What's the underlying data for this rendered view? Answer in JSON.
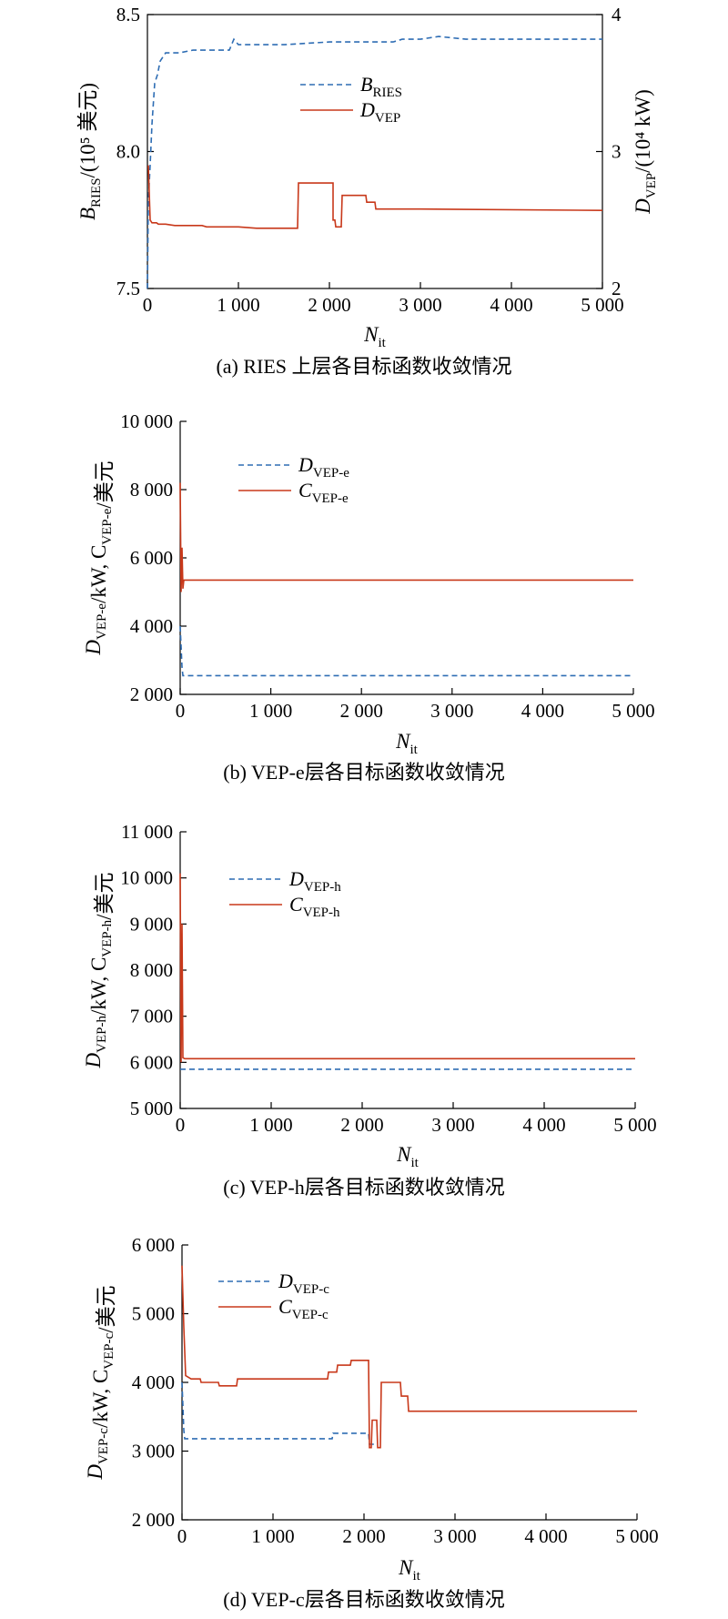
{
  "chart_data": [
    {
      "type": "line",
      "caption": "(a) RIES 上层各目标函数收敛情况",
      "xlabel": {
        "main": "N",
        "sub": "it"
      },
      "xlim": [
        0,
        5000
      ],
      "xticks": [
        "0",
        "1 000",
        "2 000",
        "3 000",
        "4 000",
        "5 000"
      ],
      "xtick_values": [
        0,
        1000,
        2000,
        3000,
        4000,
        5000
      ],
      "ylabel_left": {
        "main": "B",
        "sub": "RIES",
        "rest": "/(10⁵ 美元)"
      },
      "ylim_left": [
        7.5,
        8.5
      ],
      "yticks_left": [
        "7.5",
        "8.0",
        "8.5"
      ],
      "ytick_values_left": [
        7.5,
        8.0,
        8.5
      ],
      "ylabel_right": {
        "main": "D",
        "sub": "VEP",
        "rest": "/(10⁴ kW)"
      },
      "ylim_right": [
        2,
        4
      ],
      "yticks_right": [
        "2",
        "3",
        "4"
      ],
      "ytick_values_right": [
        2,
        3,
        4
      ],
      "legend_position": "upper-center",
      "series": [
        {
          "name_main": "B",
          "name_sub": "RIES",
          "axis": "left",
          "style": "dashed",
          "color": "#2e6db4",
          "points": [
            [
              0,
              7.5
            ],
            [
              10,
              7.82
            ],
            [
              30,
              7.95
            ],
            [
              50,
              8.1
            ],
            [
              80,
              8.25
            ],
            [
              110,
              8.28
            ],
            [
              140,
              8.33
            ],
            [
              200,
              8.36
            ],
            [
              350,
              8.36
            ],
            [
              500,
              8.37
            ],
            [
              900,
              8.37
            ],
            [
              950,
              8.41
            ],
            [
              1000,
              8.39
            ],
            [
              1500,
              8.39
            ],
            [
              2000,
              8.4
            ],
            [
              2700,
              8.4
            ],
            [
              2800,
              8.41
            ],
            [
              3000,
              8.41
            ],
            [
              3200,
              8.42
            ],
            [
              3500,
              8.41
            ],
            [
              5000,
              8.41
            ]
          ]
        },
        {
          "name_main": "D",
          "name_sub": "VEP",
          "axis": "right",
          "style": "solid",
          "color": "#c8381a",
          "points": [
            [
              10,
              2.9
            ],
            [
              30,
              2.5
            ],
            [
              50,
              2.48
            ],
            [
              100,
              2.48
            ],
            [
              120,
              2.47
            ],
            [
              200,
              2.47
            ],
            [
              300,
              2.46
            ],
            [
              600,
              2.46
            ],
            [
              650,
              2.45
            ],
            [
              1000,
              2.45
            ],
            [
              1200,
              2.44
            ],
            [
              1650,
              2.44
            ],
            [
              1660,
              2.77
            ],
            [
              2040,
              2.77
            ],
            [
              2040,
              2.5
            ],
            [
              2060,
              2.5
            ],
            [
              2070,
              2.45
            ],
            [
              2130,
              2.45
            ],
            [
              2140,
              2.68
            ],
            [
              2400,
              2.68
            ],
            [
              2410,
              2.63
            ],
            [
              2500,
              2.63
            ],
            [
              2510,
              2.58
            ],
            [
              3000,
              2.58
            ],
            [
              5000,
              2.57
            ]
          ]
        }
      ]
    },
    {
      "type": "line",
      "caption": "(b) VEP-e层各目标函数收敛情况",
      "xlabel": {
        "main": "N",
        "sub": "it"
      },
      "xlim": [
        0,
        5000
      ],
      "xticks": [
        "0",
        "1 000",
        "2 000",
        "3 000",
        "4 000",
        "5 000"
      ],
      "xtick_values": [
        0,
        1000,
        2000,
        3000,
        4000,
        5000
      ],
      "ylabel_left": {
        "parts": [
          [
            "D",
            "VEP-e"
          ],
          [
            "/kW, C",
            "VEP-e"
          ],
          [
            "/美元",
            ""
          ]
        ]
      },
      "ylim_left": [
        2000,
        10000
      ],
      "yticks_left": [
        "2 000",
        "4 000",
        "6 000",
        "8 000",
        "10 000"
      ],
      "ytick_values_left": [
        2000,
        4000,
        6000,
        8000,
        10000
      ],
      "legend_position": "upper-left",
      "series": [
        {
          "name_main": "D",
          "name_sub": "VEP-e",
          "axis": "left",
          "style": "dashed",
          "color": "#2e6db4",
          "points": [
            [
              0,
              4000
            ],
            [
              20,
              2800
            ],
            [
              30,
              2550
            ],
            [
              5000,
              2550
            ]
          ]
        },
        {
          "name_main": "C",
          "name_sub": "VEP-e",
          "axis": "left",
          "style": "solid",
          "color": "#c8381a",
          "points": [
            [
              0,
              8200
            ],
            [
              10,
              5000
            ],
            [
              20,
              6300
            ],
            [
              30,
              5100
            ],
            [
              40,
              5350
            ],
            [
              5000,
              5350
            ]
          ]
        }
      ]
    },
    {
      "type": "line",
      "caption": "(c) VEP-h层各目标函数收敛情况",
      "xlabel": {
        "main": "N",
        "sub": "it"
      },
      "xlim": [
        0,
        5000
      ],
      "xticks": [
        "0",
        "1 000",
        "2 000",
        "3 000",
        "4 000",
        "5 000"
      ],
      "xtick_values": [
        0,
        1000,
        2000,
        3000,
        4000,
        5000
      ],
      "ylabel_left": {
        "parts": [
          [
            "D",
            "VEP-h"
          ],
          [
            "/kW, C",
            "VEP-h"
          ],
          [
            "/美元",
            ""
          ]
        ]
      },
      "ylim_left": [
        5000,
        11000
      ],
      "yticks_left": [
        "5 000",
        "6 000",
        "7 000",
        "8 000",
        "9 000",
        "10 000",
        "11 000"
      ],
      "ytick_values_left": [
        5000,
        6000,
        7000,
        8000,
        9000,
        10000,
        11000
      ],
      "legend_position": "upper-left",
      "series": [
        {
          "name_main": "D",
          "name_sub": "VEP-h",
          "axis": "left",
          "style": "dashed",
          "color": "#2e6db4",
          "points": [
            [
              0,
              5850
            ],
            [
              5000,
              5850
            ]
          ]
        },
        {
          "name_main": "C",
          "name_sub": "VEP-h",
          "axis": "left",
          "style": "solid",
          "color": "#c8381a",
          "points": [
            [
              0,
              10100
            ],
            [
              10,
              6000
            ],
            [
              20,
              9000
            ],
            [
              30,
              6100
            ],
            [
              50,
              6080
            ],
            [
              5000,
              6080
            ]
          ]
        }
      ]
    },
    {
      "type": "line",
      "caption": "(d) VEP-c层各目标函数收敛情况",
      "xlabel": {
        "main": "N",
        "sub": "it"
      },
      "xlim": [
        0,
        5000
      ],
      "xticks": [
        "0",
        "1 000",
        "2 000",
        "3 000",
        "4 000",
        "5 000"
      ],
      "xtick_values": [
        0,
        1000,
        2000,
        3000,
        4000,
        5000
      ],
      "ylabel_left": {
        "parts": [
          [
            "D",
            "VEP-c"
          ],
          [
            "/kW, C",
            "VEP-c"
          ],
          [
            "/美元",
            ""
          ]
        ]
      },
      "ylim_left": [
        2000,
        6000
      ],
      "yticks_left": [
        "2 000",
        "3 000",
        "4 000",
        "5 000",
        "6 000"
      ],
      "ytick_values_left": [
        2000,
        3000,
        4000,
        5000,
        6000
      ],
      "legend_position": "upper-left",
      "series": [
        {
          "name_main": "D",
          "name_sub": "VEP-c",
          "axis": "left",
          "style": "dashed",
          "color": "#2e6db4",
          "points": [
            [
              0,
              4000
            ],
            [
              20,
              3300
            ],
            [
              30,
              3180
            ],
            [
              1650,
              3180
            ],
            [
              1660,
              3260
            ],
            [
              2050,
              3260
            ],
            [
              2060,
              3100
            ],
            [
              2150,
              3100
            ]
          ]
        },
        {
          "name_main": "C",
          "name_sub": "VEP-c",
          "axis": "left",
          "style": "solid",
          "color": "#c8381a",
          "points": [
            [
              0,
              5700
            ],
            [
              20,
              4800
            ],
            [
              40,
              4100
            ],
            [
              100,
              4050
            ],
            [
              200,
              4050
            ],
            [
              210,
              4000
            ],
            [
              400,
              4000
            ],
            [
              410,
              3950
            ],
            [
              600,
              3950
            ],
            [
              610,
              4050
            ],
            [
              1600,
              4050
            ],
            [
              1610,
              4150
            ],
            [
              1700,
              4150
            ],
            [
              1710,
              4250
            ],
            [
              1850,
              4250
            ],
            [
              1860,
              4320
            ],
            [
              2050,
              4320
            ],
            [
              2060,
              3050
            ],
            [
              2080,
              3050
            ],
            [
              2090,
              3450
            ],
            [
              2140,
              3450
            ],
            [
              2150,
              3050
            ],
            [
              2180,
              3050
            ],
            [
              2190,
              4000
            ],
            [
              2400,
              4000
            ],
            [
              2410,
              3800
            ],
            [
              2480,
              3800
            ],
            [
              2490,
              3580
            ],
            [
              5000,
              3580
            ]
          ]
        }
      ]
    }
  ]
}
